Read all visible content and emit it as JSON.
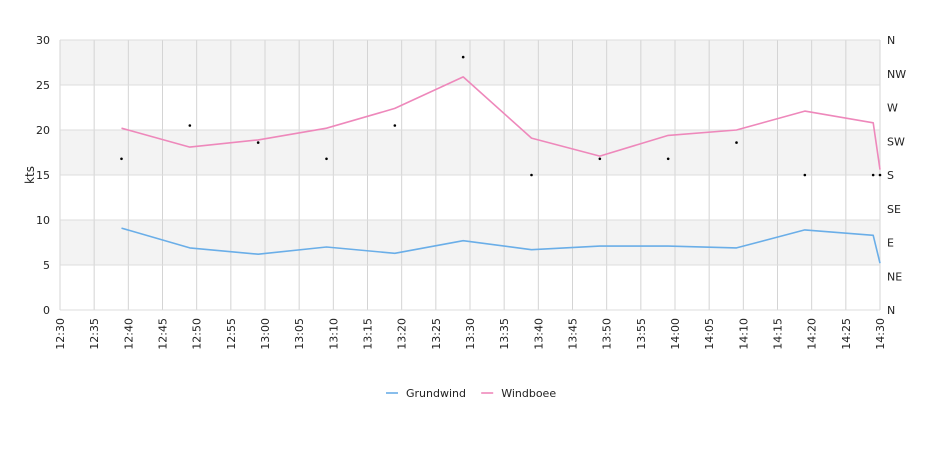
{
  "chart_data": {
    "type": "line",
    "ylabel": "kts",
    "ylim": [
      0,
      30
    ],
    "y_ticks": [
      "0",
      "5",
      "10",
      "15",
      "20",
      "25",
      "30"
    ],
    "x_ticks": [
      "12:30",
      "12:35",
      "12:40",
      "12:45",
      "12:50",
      "12:55",
      "13:00",
      "13:05",
      "13:10",
      "13:15",
      "13:20",
      "13:25",
      "13:30",
      "13:35",
      "13:40",
      "13:45",
      "13:50",
      "13:55",
      "14:00",
      "14:05",
      "14:10",
      "14:15",
      "14:20",
      "14:25",
      "14:30"
    ],
    "x_range_minutes": [
      0,
      120
    ],
    "right_axis_labels": [
      "N",
      "NE",
      "E",
      "SE",
      "S",
      "SW",
      "W",
      "NW",
      "N"
    ],
    "grid": true,
    "legend_position": "bottom-center",
    "series": [
      {
        "name": "Grundwind",
        "color": "#6aaee8",
        "x_minutes": [
          9,
          19,
          29,
          39,
          49,
          59,
          69,
          79,
          89,
          99,
          109,
          119,
          120
        ],
        "values": [
          9.1,
          6.9,
          6.2,
          7.0,
          6.3,
          7.7,
          6.7,
          7.1,
          7.1,
          6.9,
          8.9,
          8.3,
          5.2
        ]
      },
      {
        "name": "Windboee",
        "color": "#ee88bb",
        "x_minutes": [
          9,
          19,
          29,
          39,
          49,
          59,
          69,
          79,
          89,
          99,
          109,
          119,
          120
        ],
        "values": [
          20.2,
          18.1,
          18.9,
          20.2,
          22.4,
          25.9,
          19.1,
          17.1,
          19.4,
          20.0,
          22.1,
          20.8,
          15.6
        ]
      }
    ],
    "direction_markers": {
      "x_minutes": [
        9,
        19,
        29,
        39,
        49,
        59,
        69,
        79,
        89,
        99,
        109,
        119,
        120
      ],
      "values": [
        16.8,
        20.5,
        18.6,
        16.8,
        20.5,
        28.1,
        15.0,
        16.8,
        16.8,
        18.6,
        15.0,
        15.0,
        15.0
      ]
    }
  }
}
